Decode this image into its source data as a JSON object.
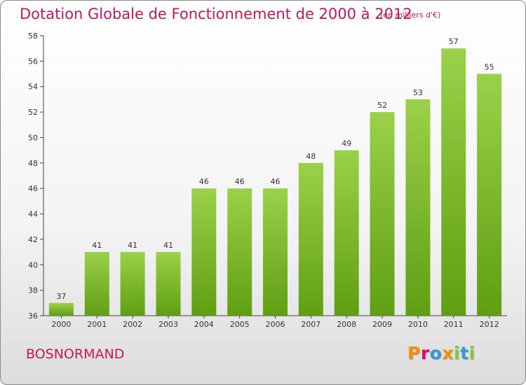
{
  "header": {
    "title": "Dotation Globale de Fonctionnement de 2000 à 2012",
    "unit_note": "(en milliers d'€)"
  },
  "footer": {
    "commune": "BOSNORMAND",
    "logo": "Proxiti"
  },
  "colors": {
    "title": "#c2185b",
    "bar_light": "#9bd14a",
    "bar_dark": "#5f9e12",
    "logo_letters": [
      "#f29100",
      "#e2007a",
      "#2e9bd6",
      "#f29100",
      "#8ac43f",
      "#2e9bd6",
      "#8ac43f"
    ]
  },
  "chart_data": {
    "type": "bar",
    "title": "Dotation Globale de Fonctionnement de 2000 à 2012",
    "ylabel": "(en milliers d'€)",
    "xlabel": "",
    "categories": [
      "2000",
      "2001",
      "2002",
      "2003",
      "2004",
      "2005",
      "2006",
      "2007",
      "2008",
      "2009",
      "2010",
      "2011",
      "2012"
    ],
    "values": [
      37,
      41,
      41,
      41,
      46,
      46,
      46,
      48,
      49,
      52,
      53,
      57,
      55
    ],
    "ylim": [
      36,
      58
    ],
    "yticks": [
      36,
      38,
      40,
      42,
      44,
      46,
      48,
      50,
      52,
      54,
      56,
      58
    ],
    "grid": false
  }
}
